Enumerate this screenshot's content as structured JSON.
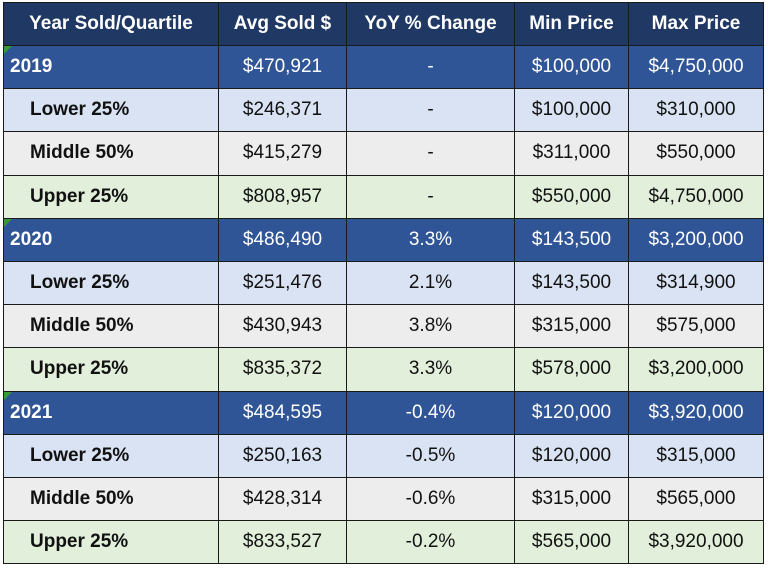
{
  "table": {
    "header": [
      "Year Sold/Quartile",
      "Avg Sold $",
      "YoY % Change",
      "Min Price",
      "Max Price"
    ],
    "rows": [
      [
        "2019",
        "$470,921",
        "-",
        "$100,000",
        "$4,750,000"
      ],
      [
        "Lower 25%",
        "$246,371",
        "-",
        "$100,000",
        "$310,000"
      ],
      [
        "Middle 50%",
        "$415,279",
        "-",
        "$311,000",
        "$550,000"
      ],
      [
        "Upper 25%",
        "$808,957",
        "-",
        "$550,000",
        "$4,750,000"
      ],
      [
        "2020",
        "$486,490",
        "3.3%",
        "$143,500",
        "$3,200,000"
      ],
      [
        "Lower 25%",
        "$251,476",
        "2.1%",
        "$143,500",
        "$314,900"
      ],
      [
        "Middle 50%",
        "$430,943",
        "3.8%",
        "$315,000",
        "$575,000"
      ],
      [
        "Upper 25%",
        "$835,372",
        "3.3%",
        "$578,000",
        "$3,200,000"
      ],
      [
        "2021",
        "$484,595",
        "-0.4%",
        "$120,000",
        "$3,920,000"
      ],
      [
        "Lower 25%",
        "$250,163",
        "-0.5%",
        "$120,000",
        "$315,000"
      ],
      [
        "Middle 50%",
        "$428,314",
        "-0.6%",
        "$315,000",
        "$565,000"
      ],
      [
        "Upper 25%",
        "$833,527",
        "-0.2%",
        "$565,000",
        "$3,920,000"
      ]
    ]
  }
}
